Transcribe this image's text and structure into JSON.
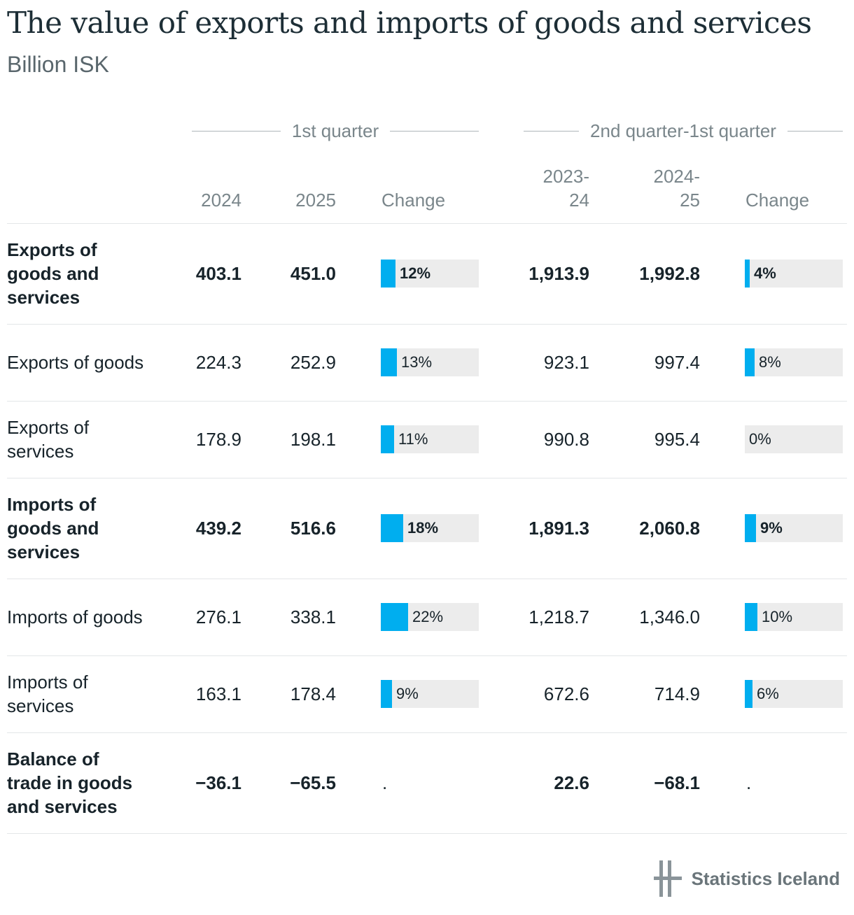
{
  "title": "The value of exports and imports of goods and services",
  "subtitle": "Billion ISK",
  "groups": {
    "q1": "1st quarter",
    "q2q1": "2nd quarter-1st quarter"
  },
  "columns": {
    "c1": "2024",
    "c2": "2025",
    "c3": "Change",
    "c4": "2023-\n24",
    "c5": "2024-\n25",
    "c6": "Change"
  },
  "colors": {
    "bar": "#00aeef",
    "bar_background": "#ececec",
    "text": "#17232a",
    "muted": "#7a868b"
  },
  "logo_text": "Statistics Iceland",
  "chart_data": {
    "type": "table",
    "rows": [
      {
        "label": "Exports of goods and services",
        "bold": true,
        "v2024": "403.1",
        "v2025": "451.0",
        "change1": 12,
        "change1_text": "12%",
        "v2023_24": "1,913.9",
        "v2024_25": "1,992.8",
        "change2": 4,
        "change2_text": "4%"
      },
      {
        "label": "Exports of goods",
        "bold": false,
        "v2024": "224.3",
        "v2025": "252.9",
        "change1": 13,
        "change1_text": "13%",
        "v2023_24": "923.1",
        "v2024_25": "997.4",
        "change2": 8,
        "change2_text": "8%"
      },
      {
        "label": "Exports of services",
        "bold": false,
        "v2024": "178.9",
        "v2025": "198.1",
        "change1": 11,
        "change1_text": "11%",
        "v2023_24": "990.8",
        "v2024_25": "995.4",
        "change2": 0,
        "change2_text": "0%"
      },
      {
        "label": "Imports of goods and services",
        "bold": true,
        "v2024": "439.2",
        "v2025": "516.6",
        "change1": 18,
        "change1_text": "18%",
        "v2023_24": "1,891.3",
        "v2024_25": "2,060.8",
        "change2": 9,
        "change2_text": "9%"
      },
      {
        "label": "Imports of goods",
        "bold": false,
        "v2024": "276.1",
        "v2025": "338.1",
        "change1": 22,
        "change1_text": "22%",
        "v2023_24": "1,218.7",
        "v2024_25": "1,346.0",
        "change2": 10,
        "change2_text": "10%"
      },
      {
        "label": "Imports of services",
        "bold": false,
        "v2024": "163.1",
        "v2025": "178.4",
        "change1": 9,
        "change1_text": "9%",
        "v2023_24": "672.6",
        "v2024_25": "714.9",
        "change2": 6,
        "change2_text": "6%"
      },
      {
        "label": "Balance of trade in goods and services",
        "bold": true,
        "v2024": "−36.1",
        "v2025": "−65.5",
        "change1": null,
        "change1_text": ".",
        "v2023_24": "22.6",
        "v2024_25": "−68.1",
        "change2": null,
        "change2_text": "."
      }
    ]
  }
}
